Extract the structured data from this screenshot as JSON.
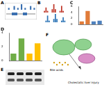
{
  "panels": {
    "A": {
      "label": "A",
      "track": [
        0,
        1,
        0,
        0,
        2,
        0,
        1,
        0,
        3,
        0,
        1,
        0,
        0,
        2,
        0,
        1
      ]
    },
    "B": {
      "label": "B",
      "track": [
        0,
        1,
        3,
        1,
        0,
        0,
        2,
        5,
        2,
        0,
        0,
        1,
        4,
        1,
        0,
        0
      ]
    },
    "E": {
      "label": "E"
    },
    "F": {
      "label": "F",
      "texts": [
        "Bile acids",
        "Cholestatic liver injury"
      ]
    }
  },
  "chart_data": [
    {
      "type": "bar",
      "title": "C",
      "categories": [
        null,
        null,
        null,
        null
      ],
      "values": [
        1,
        4.5,
        1,
        1.2
      ],
      "colors": [
        "#e07b39",
        "#e07b39",
        "#4f81bd",
        "#4f81bd"
      ],
      "ylim": [
        0,
        6
      ],
      "yticks": [
        0,
        2,
        4,
        6
      ],
      "tick_labels": "y"
    },
    {
      "type": "bar",
      "title": "D",
      "categories": [
        null,
        null,
        null,
        null
      ],
      "values": [
        1,
        3.2,
        1,
        2.5
      ],
      "colors": [
        "#70ad47",
        "#70ad47",
        "#ffc000",
        "#ffc000"
      ],
      "ylim": [
        0,
        4
      ],
      "yticks": [
        0,
        2,
        4
      ],
      "tick_labels": "y"
    }
  ]
}
